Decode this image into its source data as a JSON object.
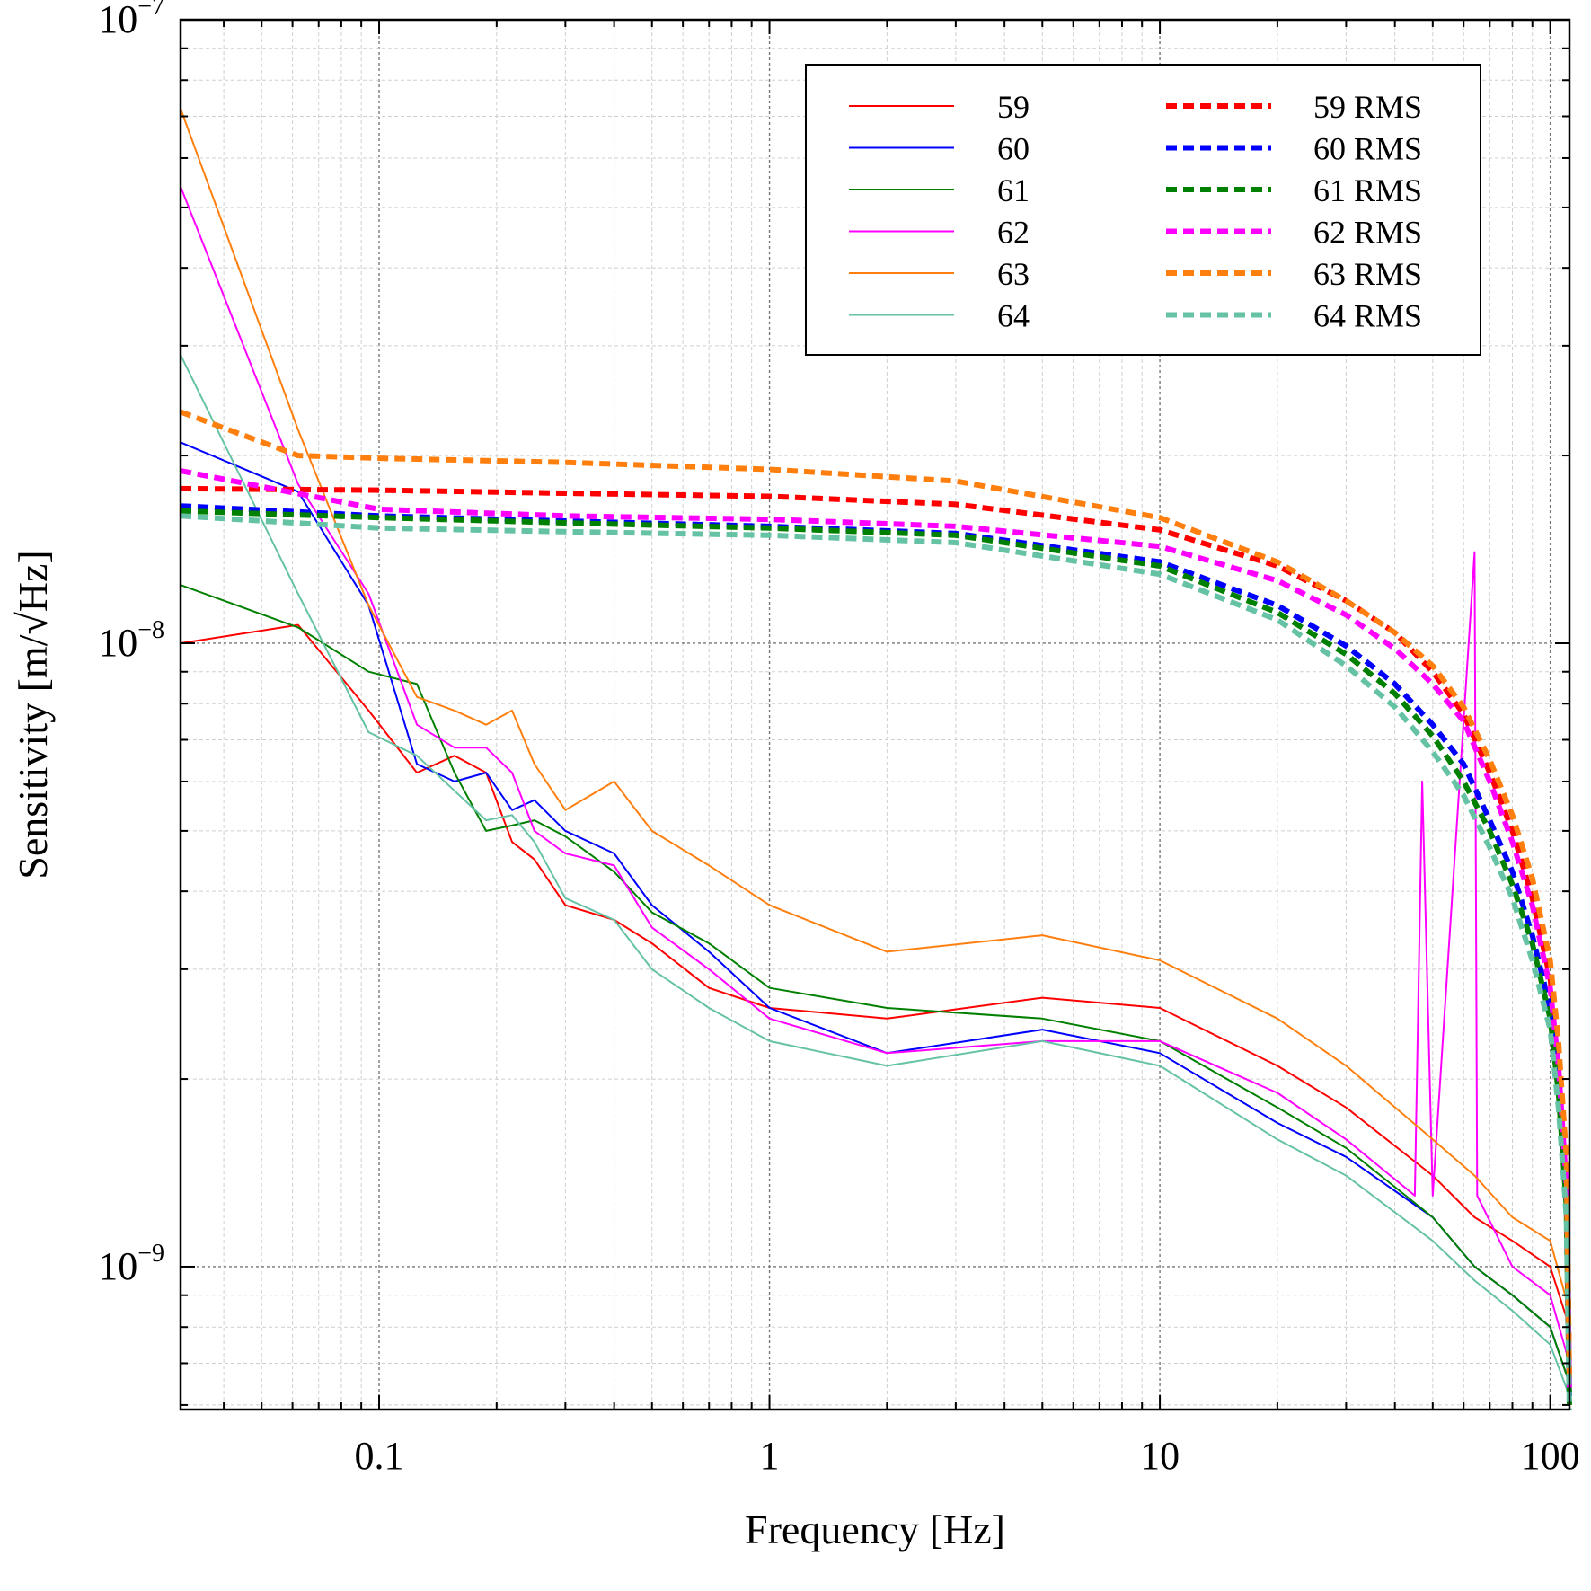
{
  "chart_data": {
    "type": "line",
    "xlabel": "Frequency [Hz]",
    "ylabel": "Sensitivity [m/√Hz]",
    "xscale": "log",
    "yscale": "log",
    "xlim": [
      0.031,
      112
    ],
    "ylim": [
      5.9e-10,
      1e-07
    ],
    "grid": true,
    "legend_position": "top-right",
    "x_ticks": [
      {
        "value": 0.1,
        "label": "0.1"
      },
      {
        "value": 1,
        "label": "1"
      },
      {
        "value": 10,
        "label": "10"
      },
      {
        "value": 100,
        "label": "100"
      }
    ],
    "y_ticks": [
      {
        "value": 1e-07,
        "base": "10",
        "exp": "−7"
      },
      {
        "value": 1e-08,
        "base": "10",
        "exp": "−8"
      },
      {
        "value": 1e-09,
        "base": "10",
        "exp": "−9"
      }
    ],
    "series": [
      {
        "name": "59",
        "color": "#ff0000",
        "style": "solid",
        "x": [
          0.031,
          0.062,
          0.094,
          0.125,
          0.156,
          0.188,
          0.219,
          0.25,
          0.3,
          0.4,
          0.5,
          0.7,
          1,
          2,
          5,
          10,
          20,
          30,
          50,
          64,
          80,
          100,
          112
        ],
        "y": [
          1e-08,
          1.07e-08,
          7.8e-09,
          6.2e-09,
          6.6e-09,
          6.2e-09,
          4.8e-09,
          4.5e-09,
          3.8e-09,
          3.6e-09,
          3.3e-09,
          2.8e-09,
          2.6e-09,
          2.5e-09,
          2.7e-09,
          2.6e-09,
          2.1e-09,
          1.8e-09,
          1.4e-09,
          1.2e-09,
          1.1e-09,
          1e-09,
          8e-10
        ]
      },
      {
        "name": "60",
        "color": "#0000ff",
        "style": "solid",
        "x": [
          0.031,
          0.062,
          0.094,
          0.125,
          0.156,
          0.188,
          0.219,
          0.25,
          0.3,
          0.4,
          0.5,
          0.7,
          1,
          2,
          5,
          10,
          20,
          30,
          50,
          64,
          80,
          100,
          112
        ],
        "y": [
          2.1e-08,
          1.75e-08,
          1.15e-08,
          6.4e-09,
          6e-09,
          6.2e-09,
          5.4e-09,
          5.6e-09,
          5e-09,
          4.6e-09,
          3.8e-09,
          3.2e-09,
          2.6e-09,
          2.2e-09,
          2.4e-09,
          2.2e-09,
          1.7e-09,
          1.5e-09,
          1.2e-09,
          1e-09,
          9e-10,
          8e-10,
          6.5e-10
        ]
      },
      {
        "name": "61",
        "color": "#008000",
        "style": "solid",
        "x": [
          0.031,
          0.062,
          0.094,
          0.125,
          0.156,
          0.188,
          0.219,
          0.25,
          0.3,
          0.4,
          0.5,
          0.7,
          1,
          2,
          5,
          10,
          20,
          30,
          50,
          64,
          80,
          100,
          112
        ],
        "y": [
          1.24e-08,
          1.06e-08,
          9e-09,
          8.6e-09,
          6.2e-09,
          5e-09,
          5.1e-09,
          5.2e-09,
          4.9e-09,
          4.3e-09,
          3.7e-09,
          3.3e-09,
          2.8e-09,
          2.6e-09,
          2.5e-09,
          2.3e-09,
          1.8e-09,
          1.55e-09,
          1.2e-09,
          1e-09,
          9e-10,
          8e-10,
          6.5e-10
        ]
      },
      {
        "name": "62",
        "color": "#ff00ff",
        "style": "solid",
        "x": [
          0.031,
          0.062,
          0.094,
          0.125,
          0.156,
          0.188,
          0.219,
          0.25,
          0.3,
          0.4,
          0.5,
          0.7,
          1,
          2,
          5,
          10,
          20,
          30,
          45,
          47,
          50,
          64,
          65,
          80,
          100,
          112
        ],
        "y": [
          5.4e-08,
          1.8e-08,
          1.2e-08,
          7.4e-09,
          6.8e-09,
          6.8e-09,
          6.2e-09,
          5e-09,
          4.6e-09,
          4.4e-09,
          3.5e-09,
          3e-09,
          2.5e-09,
          2.2e-09,
          2.3e-09,
          2.3e-09,
          1.9e-09,
          1.6e-09,
          1.3e-09,
          6e-09,
          1.3e-09,
          1.4e-08,
          1.3e-09,
          1e-09,
          9e-10,
          7e-10
        ]
      },
      {
        "name": "63",
        "color": "#ff7f0e",
        "style": "solid",
        "x": [
          0.031,
          0.062,
          0.094,
          0.125,
          0.156,
          0.188,
          0.219,
          0.25,
          0.3,
          0.4,
          0.5,
          0.7,
          1,
          2,
          5,
          10,
          20,
          30,
          50,
          64,
          80,
          100,
          112
        ],
        "y": [
          7.2e-08,
          2.2e-08,
          1.15e-08,
          8.2e-09,
          7.8e-09,
          7.4e-09,
          7.8e-09,
          6.4e-09,
          5.4e-09,
          6e-09,
          5e-09,
          4.4e-09,
          3.8e-09,
          3.2e-09,
          3.4e-09,
          3.1e-09,
          2.5e-09,
          2.1e-09,
          1.6e-09,
          1.4e-09,
          1.2e-09,
          1.1e-09,
          8.5e-10
        ]
      },
      {
        "name": "64",
        "color": "#66c2a5",
        "style": "solid",
        "x": [
          0.031,
          0.062,
          0.094,
          0.125,
          0.156,
          0.188,
          0.219,
          0.25,
          0.3,
          0.4,
          0.5,
          0.7,
          1,
          2,
          5,
          10,
          20,
          30,
          50,
          64,
          80,
          100,
          112
        ],
        "y": [
          2.9e-08,
          1.2e-08,
          7.2e-09,
          6.6e-09,
          5.8e-09,
          5.2e-09,
          5.3e-09,
          4.8e-09,
          3.9e-09,
          3.6e-09,
          3e-09,
          2.6e-09,
          2.3e-09,
          2.1e-09,
          2.3e-09,
          2.1e-09,
          1.6e-09,
          1.4e-09,
          1.1e-09,
          9.5e-10,
          8.5e-10,
          7.5e-10,
          6.2e-10
        ]
      },
      {
        "name": "59 RMS",
        "color": "#ff0000",
        "style": "dashed",
        "x": [
          0.031,
          0.1,
          0.3,
          1,
          3,
          10,
          20,
          30,
          40,
          50,
          60,
          70,
          80,
          90,
          100,
          105,
          110,
          112
        ],
        "y": [
          1.77e-08,
          1.76e-08,
          1.74e-08,
          1.72e-08,
          1.67e-08,
          1.52e-08,
          1.33e-08,
          1.17e-08,
          1.04e-08,
          9e-09,
          7.7e-09,
          6.2e-09,
          5e-09,
          3.9e-09,
          2.9e-09,
          2.2e-09,
          1.4e-09,
          6.5e-10
        ]
      },
      {
        "name": "60 RMS",
        "color": "#0000ff",
        "style": "dashed",
        "x": [
          0.031,
          0.1,
          0.3,
          1,
          3,
          10,
          20,
          30,
          40,
          50,
          60,
          70,
          80,
          90,
          100,
          105,
          110,
          112
        ],
        "y": [
          1.66e-08,
          1.6e-08,
          1.57e-08,
          1.54e-08,
          1.5e-08,
          1.35e-08,
          1.15e-08,
          9.9e-09,
          8.6e-09,
          7.4e-09,
          6.4e-09,
          5.2e-09,
          4.3e-09,
          3.4e-09,
          2.6e-09,
          2e-09,
          1.3e-09,
          6.2e-10
        ]
      },
      {
        "name": "61 RMS",
        "color": "#008000",
        "style": "dashed",
        "x": [
          0.031,
          0.1,
          0.3,
          1,
          3,
          10,
          20,
          30,
          40,
          50,
          60,
          70,
          80,
          90,
          100,
          105,
          110,
          112
        ],
        "y": [
          1.63e-08,
          1.59e-08,
          1.56e-08,
          1.53e-08,
          1.49e-08,
          1.33e-08,
          1.12e-08,
          9.6e-09,
          8.3e-09,
          7.1e-09,
          6e-09,
          5e-09,
          4.1e-09,
          3.3e-09,
          2.5e-09,
          1.9e-09,
          1.25e-09,
          6e-10
        ]
      },
      {
        "name": "62 RMS",
        "color": "#ff00ff",
        "style": "dashed",
        "x": [
          0.031,
          0.1,
          0.3,
          1,
          3,
          10,
          20,
          30,
          40,
          50,
          60,
          70,
          80,
          90,
          100,
          105,
          110,
          112
        ],
        "y": [
          1.89e-08,
          1.64e-08,
          1.6e-08,
          1.58e-08,
          1.54e-08,
          1.43e-08,
          1.26e-08,
          1.11e-08,
          9.8e-09,
          8.6e-09,
          7.5e-09,
          6e-09,
          4.8e-09,
          3.8e-09,
          2.8e-09,
          2.1e-09,
          1.35e-09,
          6.4e-10
        ]
      },
      {
        "name": "63 RMS",
        "color": "#ff7f0e",
        "style": "dashed",
        "x": [
          0.031,
          0.062,
          0.1,
          0.3,
          1,
          3,
          10,
          20,
          30,
          40,
          50,
          60,
          70,
          80,
          90,
          100,
          105,
          110,
          112
        ],
        "y": [
          2.35e-08,
          2e-08,
          1.98e-08,
          1.95e-08,
          1.9e-08,
          1.82e-08,
          1.59e-08,
          1.35e-08,
          1.17e-08,
          1.04e-08,
          9.2e-09,
          7.9e-09,
          6.5e-09,
          5.3e-09,
          4.2e-09,
          3.1e-09,
          2.3e-09,
          1.5e-09,
          6.6e-10
        ]
      },
      {
        "name": "64 RMS",
        "color": "#66c2a5",
        "style": "dashed",
        "x": [
          0.031,
          0.1,
          0.3,
          1,
          3,
          10,
          20,
          30,
          40,
          50,
          60,
          70,
          80,
          90,
          100,
          105,
          110,
          112
        ],
        "y": [
          1.6e-08,
          1.53e-08,
          1.51e-08,
          1.49e-08,
          1.45e-08,
          1.29e-08,
          1.09e-08,
          9.2e-09,
          7.9e-09,
          6.7e-09,
          5.7e-09,
          4.7e-09,
          3.9e-09,
          3.1e-09,
          2.4e-09,
          1.8e-09,
          1.2e-09,
          5.9e-10
        ]
      }
    ]
  }
}
